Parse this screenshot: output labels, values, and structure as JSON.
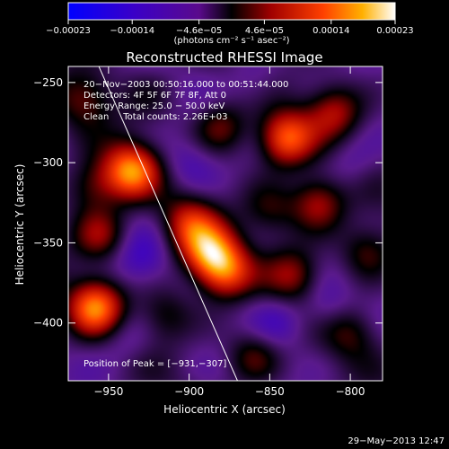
{
  "chart_data": {
    "type": "heatmap",
    "title": "Reconstructed RHESSI Image",
    "xlabel": "Heliocentric X (arcsec)",
    "ylabel": "Heliocentric Y (arcsec)",
    "xlim": [
      -975,
      -780
    ],
    "ylim": [
      -436,
      -240
    ],
    "xticks": [
      -950,
      -900,
      -850,
      -800
    ],
    "xtick_labels": [
      "−950",
      "−900",
      "−850",
      "−800"
    ],
    "yticks": [
      -250,
      -300,
      -350,
      -400
    ],
    "ytick_labels": [
      "−250",
      "−300",
      "−350",
      "−400"
    ],
    "colorbar": {
      "min": -0.00023,
      "max": 0.00023,
      "ticks": [
        -0.00023,
        -0.00014,
        -4.6e-05,
        4.6e-05,
        0.00014,
        0.00023
      ],
      "tick_labels": [
        "−0.00023",
        "−0.00014",
        "−4.6e−05",
        "4.6e−05",
        "0.00014",
        "0.00023"
      ],
      "unit_label": "(photons cm⁻² s⁻¹ asec⁻²)"
    },
    "info_lines": [
      "20−Nov−2003 00:50:16.000 to 00:51:44.000",
      "Detectors: 4F 5F 6F 7F 8F, Att 0",
      "Energy Range: 25.0 − 50.0 keV",
      "Clean     Total counts: 2.26E+03"
    ],
    "peak_label": "Position of Peak = [−931,−307]",
    "limb_line": [
      [
        -956,
        -240
      ],
      [
        -870,
        -436
      ]
    ],
    "sources": [
      {
        "x": -936,
        "y": -305,
        "v": 1.0
      },
      {
        "x": -840,
        "y": -285,
        "v": 0.9
      },
      {
        "x": -888,
        "y": -355,
        "v": 0.85
      },
      {
        "x": -878,
        "y": -368,
        "v": 0.8
      },
      {
        "x": -900,
        "y": -338,
        "v": 0.6
      },
      {
        "x": -958,
        "y": -390,
        "v": 0.95
      },
      {
        "x": -810,
        "y": -268,
        "v": 0.55
      },
      {
        "x": -820,
        "y": -325,
        "v": 0.6
      },
      {
        "x": -835,
        "y": -370,
        "v": 0.5
      },
      {
        "x": -880,
        "y": -278,
        "v": 0.45
      },
      {
        "x": -955,
        "y": -345,
        "v": 0.5
      },
      {
        "x": -965,
        "y": -260,
        "v": 0.4
      },
      {
        "x": -960,
        "y": -315,
        "v": 0.45
      },
      {
        "x": -860,
        "y": -420,
        "v": 0.4
      },
      {
        "x": -800,
        "y": -405,
        "v": 0.35
      },
      {
        "x": -915,
        "y": -395,
        "v": 0.35
      },
      {
        "x": -850,
        "y": -330,
        "v": 0.35
      },
      {
        "x": -790,
        "y": -355,
        "v": 0.4
      },
      {
        "x": -925,
        "y": -258,
        "v": 0.15
      },
      {
        "x": -900,
        "y": -300,
        "v": -0.25
      },
      {
        "x": -930,
        "y": -360,
        "v": -0.3
      },
      {
        "x": -940,
        "y": -410,
        "v": -0.2
      },
      {
        "x": -845,
        "y": -400,
        "v": -0.3
      },
      {
        "x": -815,
        "y": -390,
        "v": -0.25
      },
      {
        "x": -860,
        "y": -250,
        "v": -0.2
      },
      {
        "x": -800,
        "y": -300,
        "v": -0.2
      }
    ]
  },
  "footer": {
    "timestamp": "29−May−2013 12:47"
  }
}
